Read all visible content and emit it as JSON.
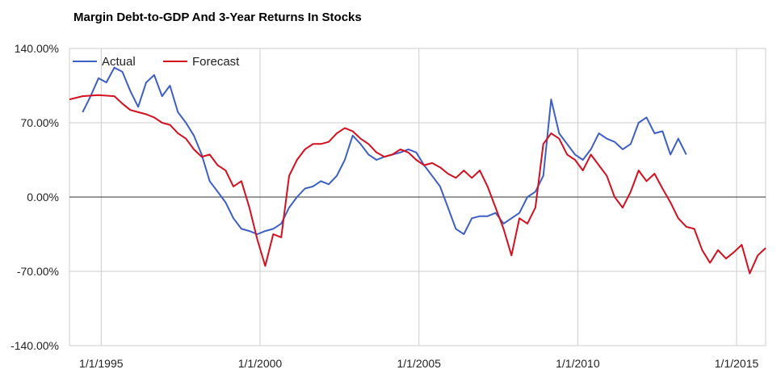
{
  "chart_data": {
    "type": "line",
    "title": "Margin Debt-to-GDP And 3-Year Returns In Stocks",
    "xlabel": "",
    "ylabel": "",
    "x_axis": {
      "type": "date",
      "ticks": [
        "1/1/1995",
        "1/1/2000",
        "1/1/2005",
        "1/1/2010",
        "1/1/2015"
      ],
      "range": [
        "1994-01-01",
        "2015-12-01"
      ]
    },
    "y_axis": {
      "ticks": [
        "140.00%",
        "70.00%",
        "0.00%",
        "-70.00%",
        "-140.00%"
      ],
      "ylim": [
        -140,
        140
      ],
      "unit": "%"
    },
    "grid": true,
    "legend": {
      "position": "top-left"
    },
    "series": [
      {
        "name": "Actual",
        "color": "#3d5fc4",
        "points": [
          [
            "1994-06",
            80
          ],
          [
            "1994-09",
            95
          ],
          [
            "1994-12",
            112
          ],
          [
            "1995-03",
            108
          ],
          [
            "1995-06",
            122
          ],
          [
            "1995-09",
            118
          ],
          [
            "1995-12",
            100
          ],
          [
            "1996-03",
            85
          ],
          [
            "1996-06",
            108
          ],
          [
            "1996-09",
            115
          ],
          [
            "1996-12",
            95
          ],
          [
            "1997-03",
            105
          ],
          [
            "1997-06",
            80
          ],
          [
            "1997-09",
            70
          ],
          [
            "1997-12",
            58
          ],
          [
            "1998-03",
            40
          ],
          [
            "1998-06",
            15
          ],
          [
            "1998-09",
            5
          ],
          [
            "1998-12",
            -5
          ],
          [
            "1999-03",
            -20
          ],
          [
            "1999-06",
            -30
          ],
          [
            "1999-09",
            -32
          ],
          [
            "1999-12",
            -35
          ],
          [
            "2000-03",
            -32
          ],
          [
            "2000-06",
            -30
          ],
          [
            "2000-09",
            -25
          ],
          [
            "2000-12",
            -10
          ],
          [
            "2001-03",
            0
          ],
          [
            "2001-06",
            8
          ],
          [
            "2001-09",
            10
          ],
          [
            "2001-12",
            15
          ],
          [
            "2002-03",
            12
          ],
          [
            "2002-06",
            20
          ],
          [
            "2002-09",
            35
          ],
          [
            "2002-12",
            58
          ],
          [
            "2003-03",
            50
          ],
          [
            "2003-06",
            40
          ],
          [
            "2003-09",
            35
          ],
          [
            "2003-12",
            38
          ],
          [
            "2004-03",
            40
          ],
          [
            "2004-06",
            42
          ],
          [
            "2004-09",
            45
          ],
          [
            "2004-12",
            42
          ],
          [
            "2005-03",
            30
          ],
          [
            "2005-06",
            20
          ],
          [
            "2005-09",
            10
          ],
          [
            "2005-12",
            -10
          ],
          [
            "2006-03",
            -30
          ],
          [
            "2006-06",
            -35
          ],
          [
            "2006-09",
            -20
          ],
          [
            "2006-12",
            -18
          ],
          [
            "2007-03",
            -18
          ],
          [
            "2007-06",
            -15
          ],
          [
            "2007-09",
            -25
          ],
          [
            "2007-12",
            -20
          ],
          [
            "2008-03",
            -15
          ],
          [
            "2008-06",
            0
          ],
          [
            "2008-09",
            5
          ],
          [
            "2008-12",
            20
          ],
          [
            "2009-03",
            92
          ],
          [
            "2009-06",
            60
          ],
          [
            "2009-09",
            50
          ],
          [
            "2009-12",
            40
          ],
          [
            "2010-03",
            35
          ],
          [
            "2010-06",
            45
          ],
          [
            "2010-09",
            60
          ],
          [
            "2010-12",
            55
          ],
          [
            "2011-03",
            52
          ],
          [
            "2011-06",
            45
          ],
          [
            "2011-09",
            50
          ],
          [
            "2011-12",
            70
          ],
          [
            "2012-03",
            75
          ],
          [
            "2012-06",
            60
          ],
          [
            "2012-09",
            62
          ],
          [
            "2012-12",
            40
          ],
          [
            "2013-03",
            55
          ],
          [
            "2013-06",
            40
          ]
        ]
      },
      {
        "name": "Forecast",
        "color": "#d40f1f",
        "points": [
          [
            "1994-01",
            92
          ],
          [
            "1994-06",
            95
          ],
          [
            "1994-12",
            96
          ],
          [
            "1995-06",
            95
          ],
          [
            "1995-09",
            88
          ],
          [
            "1995-12",
            82
          ],
          [
            "1996-03",
            80
          ],
          [
            "1996-06",
            78
          ],
          [
            "1996-09",
            75
          ],
          [
            "1996-12",
            70
          ],
          [
            "1997-03",
            68
          ],
          [
            "1997-06",
            60
          ],
          [
            "1997-09",
            55
          ],
          [
            "1997-12",
            45
          ],
          [
            "1998-03",
            38
          ],
          [
            "1998-06",
            40
          ],
          [
            "1998-09",
            30
          ],
          [
            "1998-12",
            25
          ],
          [
            "1999-03",
            10
          ],
          [
            "1999-06",
            15
          ],
          [
            "1999-09",
            -10
          ],
          [
            "1999-12",
            -40
          ],
          [
            "2000-03",
            -65
          ],
          [
            "2000-06",
            -35
          ],
          [
            "2000-09",
            -38
          ],
          [
            "2000-12",
            20
          ],
          [
            "2001-03",
            35
          ],
          [
            "2001-06",
            45
          ],
          [
            "2001-09",
            50
          ],
          [
            "2001-12",
            50
          ],
          [
            "2002-03",
            52
          ],
          [
            "2002-06",
            60
          ],
          [
            "2002-09",
            65
          ],
          [
            "2002-12",
            62
          ],
          [
            "2003-03",
            55
          ],
          [
            "2003-06",
            50
          ],
          [
            "2003-09",
            42
          ],
          [
            "2003-12",
            38
          ],
          [
            "2004-03",
            40
          ],
          [
            "2004-06",
            45
          ],
          [
            "2004-09",
            42
          ],
          [
            "2004-12",
            35
          ],
          [
            "2005-03",
            30
          ],
          [
            "2005-06",
            32
          ],
          [
            "2005-09",
            28
          ],
          [
            "2005-12",
            22
          ],
          [
            "2006-03",
            18
          ],
          [
            "2006-06",
            25
          ],
          [
            "2006-09",
            18
          ],
          [
            "2006-12",
            25
          ],
          [
            "2007-03",
            10
          ],
          [
            "2007-06",
            -10
          ],
          [
            "2007-09",
            -30
          ],
          [
            "2007-12",
            -55
          ],
          [
            "2008-03",
            -20
          ],
          [
            "2008-06",
            -25
          ],
          [
            "2008-09",
            -10
          ],
          [
            "2008-12",
            50
          ],
          [
            "2009-03",
            60
          ],
          [
            "2009-06",
            55
          ],
          [
            "2009-09",
            40
          ],
          [
            "2009-12",
            35
          ],
          [
            "2010-03",
            25
          ],
          [
            "2010-06",
            40
          ],
          [
            "2010-09",
            30
          ],
          [
            "2010-12",
            20
          ],
          [
            "2011-03",
            0
          ],
          [
            "2011-06",
            -10
          ],
          [
            "2011-09",
            5
          ],
          [
            "2011-12",
            25
          ],
          [
            "2012-03",
            15
          ],
          [
            "2012-06",
            22
          ],
          [
            "2012-09",
            8
          ],
          [
            "2012-12",
            -5
          ],
          [
            "2013-03",
            -20
          ],
          [
            "2013-06",
            -28
          ],
          [
            "2013-09",
            -30
          ],
          [
            "2013-12",
            -50
          ],
          [
            "2014-03",
            -62
          ],
          [
            "2014-06",
            -50
          ],
          [
            "2014-09",
            -58
          ],
          [
            "2014-12",
            -52
          ],
          [
            "2015-03",
            -45
          ],
          [
            "2015-06",
            -72
          ],
          [
            "2015-09",
            -55
          ],
          [
            "2015-12",
            -48
          ]
        ]
      }
    ]
  }
}
